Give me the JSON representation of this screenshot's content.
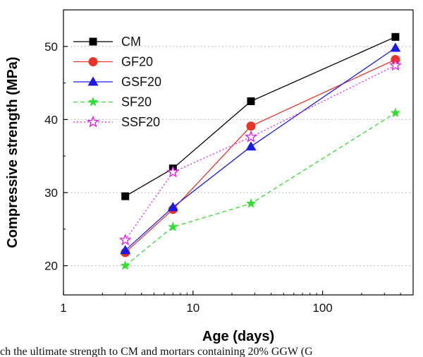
{
  "chart_data": {
    "type": "line",
    "xlabel": "Age (days)",
    "ylabel": "Compressive strength (MPa)",
    "x_scale": "log",
    "xlim": [
      1,
      500
    ],
    "ylim": [
      16,
      55
    ],
    "x_ticks": [
      1,
      10,
      100
    ],
    "x_tick_labels": [
      "1",
      "10",
      "100"
    ],
    "y_ticks": [
      20,
      30,
      40,
      50
    ],
    "y_tick_labels": [
      "20",
      "30",
      "40",
      "50"
    ],
    "grid": "horizontal dotted",
    "legend_position": "top-left",
    "x": [
      3,
      7,
      28,
      365
    ],
    "series": [
      {
        "name": "CM",
        "values": [
          29.5,
          33.3,
          42.5,
          51.3
        ],
        "color": "#000000",
        "marker": "square",
        "dash": "solid"
      },
      {
        "name": "GF20",
        "values": [
          21.8,
          27.7,
          39.1,
          48.2
        ],
        "color": "#e8332b",
        "marker": "circle",
        "dash": "solid"
      },
      {
        "name": "GSF20",
        "values": [
          22.1,
          28.0,
          36.3,
          49.8
        ],
        "color": "#1a1ae6",
        "marker": "triangle",
        "dash": "solid"
      },
      {
        "name": "SF20",
        "values": [
          20.0,
          25.3,
          28.5,
          40.9
        ],
        "color": "#33dd33",
        "marker": "star-filled",
        "dash": "dashed"
      },
      {
        "name": "SSF20",
        "values": [
          23.5,
          32.8,
          37.6,
          47.4
        ],
        "color": "#e619e6",
        "marker": "star-open",
        "dash": "dotted"
      }
    ]
  },
  "caption": "ch the ultimate strength to CM and mortars containing 20% GGW (G"
}
